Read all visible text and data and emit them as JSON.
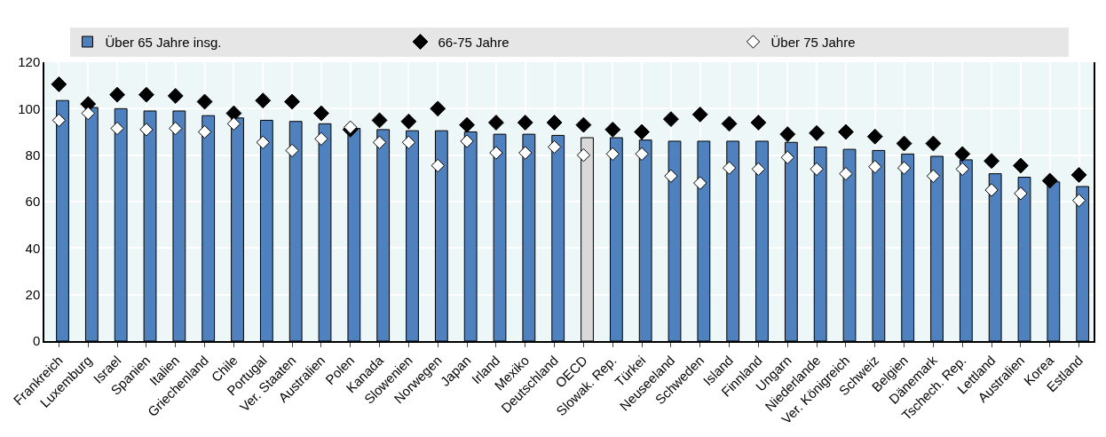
{
  "chart_data": {
    "type": "bar",
    "categories": [
      "Frankreich",
      "Luxemburg",
      "Israel",
      "Spanien",
      "Italien",
      "Griechenland",
      "Chile",
      "Portugal",
      "Ver. Staaten",
      "Australien",
      "Polen",
      "Kanada",
      "Slowenien",
      "Norwegen",
      "Japan",
      "Irland",
      "Mexiko",
      "Deutschland",
      "OECD",
      "Slowak. Rep.",
      "Türkei",
      "Neuseeland",
      "Schweden",
      "Island",
      "Finnland",
      "Ungarn",
      "Niederlande",
      "Ver. Königreich",
      "Schweiz",
      "Belgien",
      "Dänemark",
      "Tschech. Rep.",
      "Lettland",
      "Australien",
      "Korea",
      "Estland"
    ],
    "series": [
      {
        "name": "Über 65 Jahre insg.",
        "color": "#4e81bd",
        "colors": [
          "#4e81bd",
          "#4e81bd",
          "#4e81bd",
          "#4e81bd",
          "#4e81bd",
          "#4e81bd",
          "#4e81bd",
          "#4e81bd",
          "#4e81bd",
          "#4e81bd",
          "#4e81bd",
          "#4e81bd",
          "#4e81bd",
          "#4e81bd",
          "#4e81bd",
          "#4e81bd",
          "#4e81bd",
          "#4e81bd",
          "#d9d9d9",
          "#4e81bd",
          "#4e81bd",
          "#4e81bd",
          "#4e81bd",
          "#4e81bd",
          "#4e81bd",
          "#4e81bd",
          "#4e81bd",
          "#4e81bd",
          "#4e81bd",
          "#4e81bd",
          "#4e81bd",
          "#4e81bd",
          "#4e81bd",
          "#4e81bd",
          "#4e81bd",
          "#4e81bd"
        ],
        "values": [
          103.5,
          100.5,
          100,
          99,
          99,
          97,
          96,
          95,
          94.5,
          93.5,
          91.5,
          91,
          90.5,
          90.5,
          90,
          89,
          89,
          88.5,
          87.5,
          87.5,
          86.5,
          86,
          86,
          86,
          86,
          85.5,
          83.5,
          82.5,
          82,
          80.5,
          79.5,
          78,
          72,
          70.5,
          68.5,
          66.5
        ]
      },
      {
        "name": "66-75 Jahre",
        "type": "scatter",
        "marker": "diamond",
        "color": "#000000",
        "values": [
          110.5,
          102,
          106,
          106,
          105.5,
          103,
          98,
          103.5,
          103,
          98,
          91,
          95,
          94.5,
          100,
          93,
          94,
          94,
          94,
          93,
          91,
          90,
          95.5,
          97.5,
          93.5,
          94,
          89,
          89.5,
          90,
          88,
          85,
          85,
          80.5,
          77.5,
          75.5,
          69,
          71.5
        ]
      },
      {
        "name": "Über 75 Jahre",
        "type": "scatter",
        "marker": "diamond",
        "color": "#ffffff",
        "values": [
          95,
          98,
          91.5,
          91,
          91.5,
          90,
          93.5,
          85.5,
          82,
          87,
          92,
          85.5,
          85.5,
          75.5,
          86,
          81,
          81,
          83.5,
          80,
          80.5,
          80.5,
          71,
          68,
          74.5,
          74,
          79,
          74,
          72,
          75,
          74.5,
          71,
          74,
          65,
          63.5,
          null,
          60.5
        ]
      }
    ],
    "ylim": [
      0,
      120
    ],
    "yticks": [
      0,
      20,
      40,
      60,
      80,
      100,
      120
    ],
    "grid": true,
    "legend": "top"
  }
}
